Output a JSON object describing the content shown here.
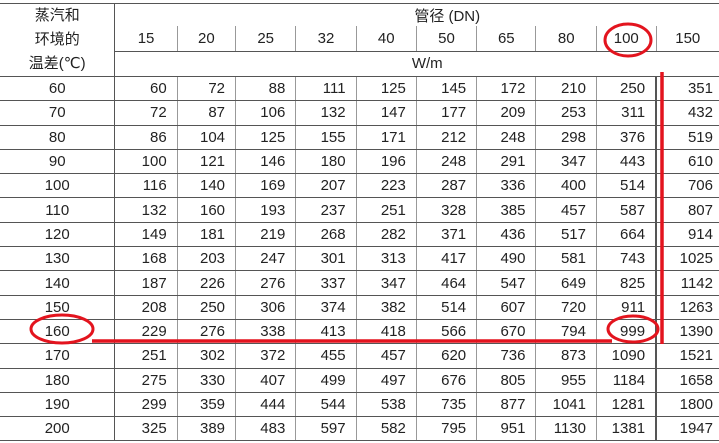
{
  "header": {
    "row_label": [
      "蒸汽和",
      "环境的",
      "温差(℃)"
    ],
    "group_label": "管径 (DN)",
    "unit": "W/m",
    "pipe_sizes": [
      "15",
      "20",
      "25",
      "32",
      "40",
      "50",
      "65",
      "80",
      "100",
      "150"
    ]
  },
  "rows": [
    {
      "dt": "60",
      "v": [
        "60",
        "72",
        "88",
        "111",
        "125",
        "145",
        "172",
        "210",
        "250",
        "351"
      ]
    },
    {
      "dt": "70",
      "v": [
        "72",
        "87",
        "106",
        "132",
        "147",
        "177",
        "209",
        "253",
        "311",
        "432"
      ]
    },
    {
      "dt": "80",
      "v": [
        "86",
        "104",
        "125",
        "155",
        "171",
        "212",
        "248",
        "298",
        "376",
        "519"
      ]
    },
    {
      "dt": "90",
      "v": [
        "100",
        "121",
        "146",
        "180",
        "196",
        "248",
        "291",
        "347",
        "443",
        "610"
      ]
    },
    {
      "dt": "100",
      "v": [
        "116",
        "140",
        "169",
        "207",
        "223",
        "287",
        "336",
        "400",
        "514",
        "706"
      ]
    },
    {
      "dt": "110",
      "v": [
        "132",
        "160",
        "193",
        "237",
        "251",
        "328",
        "385",
        "457",
        "587",
        "807"
      ]
    },
    {
      "dt": "120",
      "v": [
        "149",
        "181",
        "219",
        "268",
        "282",
        "371",
        "436",
        "517",
        "664",
        "914"
      ]
    },
    {
      "dt": "130",
      "v": [
        "168",
        "203",
        "247",
        "301",
        "313",
        "417",
        "490",
        "581",
        "743",
        "1025"
      ]
    },
    {
      "dt": "140",
      "v": [
        "187",
        "226",
        "276",
        "337",
        "347",
        "464",
        "547",
        "649",
        "825",
        "1142"
      ]
    },
    {
      "dt": "150",
      "v": [
        "208",
        "250",
        "306",
        "374",
        "382",
        "514",
        "607",
        "720",
        "911",
        "1263"
      ]
    },
    {
      "dt": "160",
      "v": [
        "229",
        "276",
        "338",
        "413",
        "418",
        "566",
        "670",
        "794",
        "999",
        "1390"
      ]
    },
    {
      "dt": "170",
      "v": [
        "251",
        "302",
        "372",
        "455",
        "457",
        "620",
        "736",
        "873",
        "1090",
        "1521"
      ]
    },
    {
      "dt": "180",
      "v": [
        "275",
        "330",
        "407",
        "499",
        "497",
        "676",
        "805",
        "955",
        "1184",
        "1658"
      ]
    },
    {
      "dt": "190",
      "v": [
        "299",
        "359",
        "444",
        "544",
        "538",
        "735",
        "877",
        "1041",
        "1281",
        "1800"
      ]
    },
    {
      "dt": "200",
      "v": [
        "325",
        "389",
        "483",
        "597",
        "582",
        "795",
        "951",
        "1130",
        "1381",
        "1947"
      ]
    }
  ],
  "annotation_color": "#e3141e"
}
